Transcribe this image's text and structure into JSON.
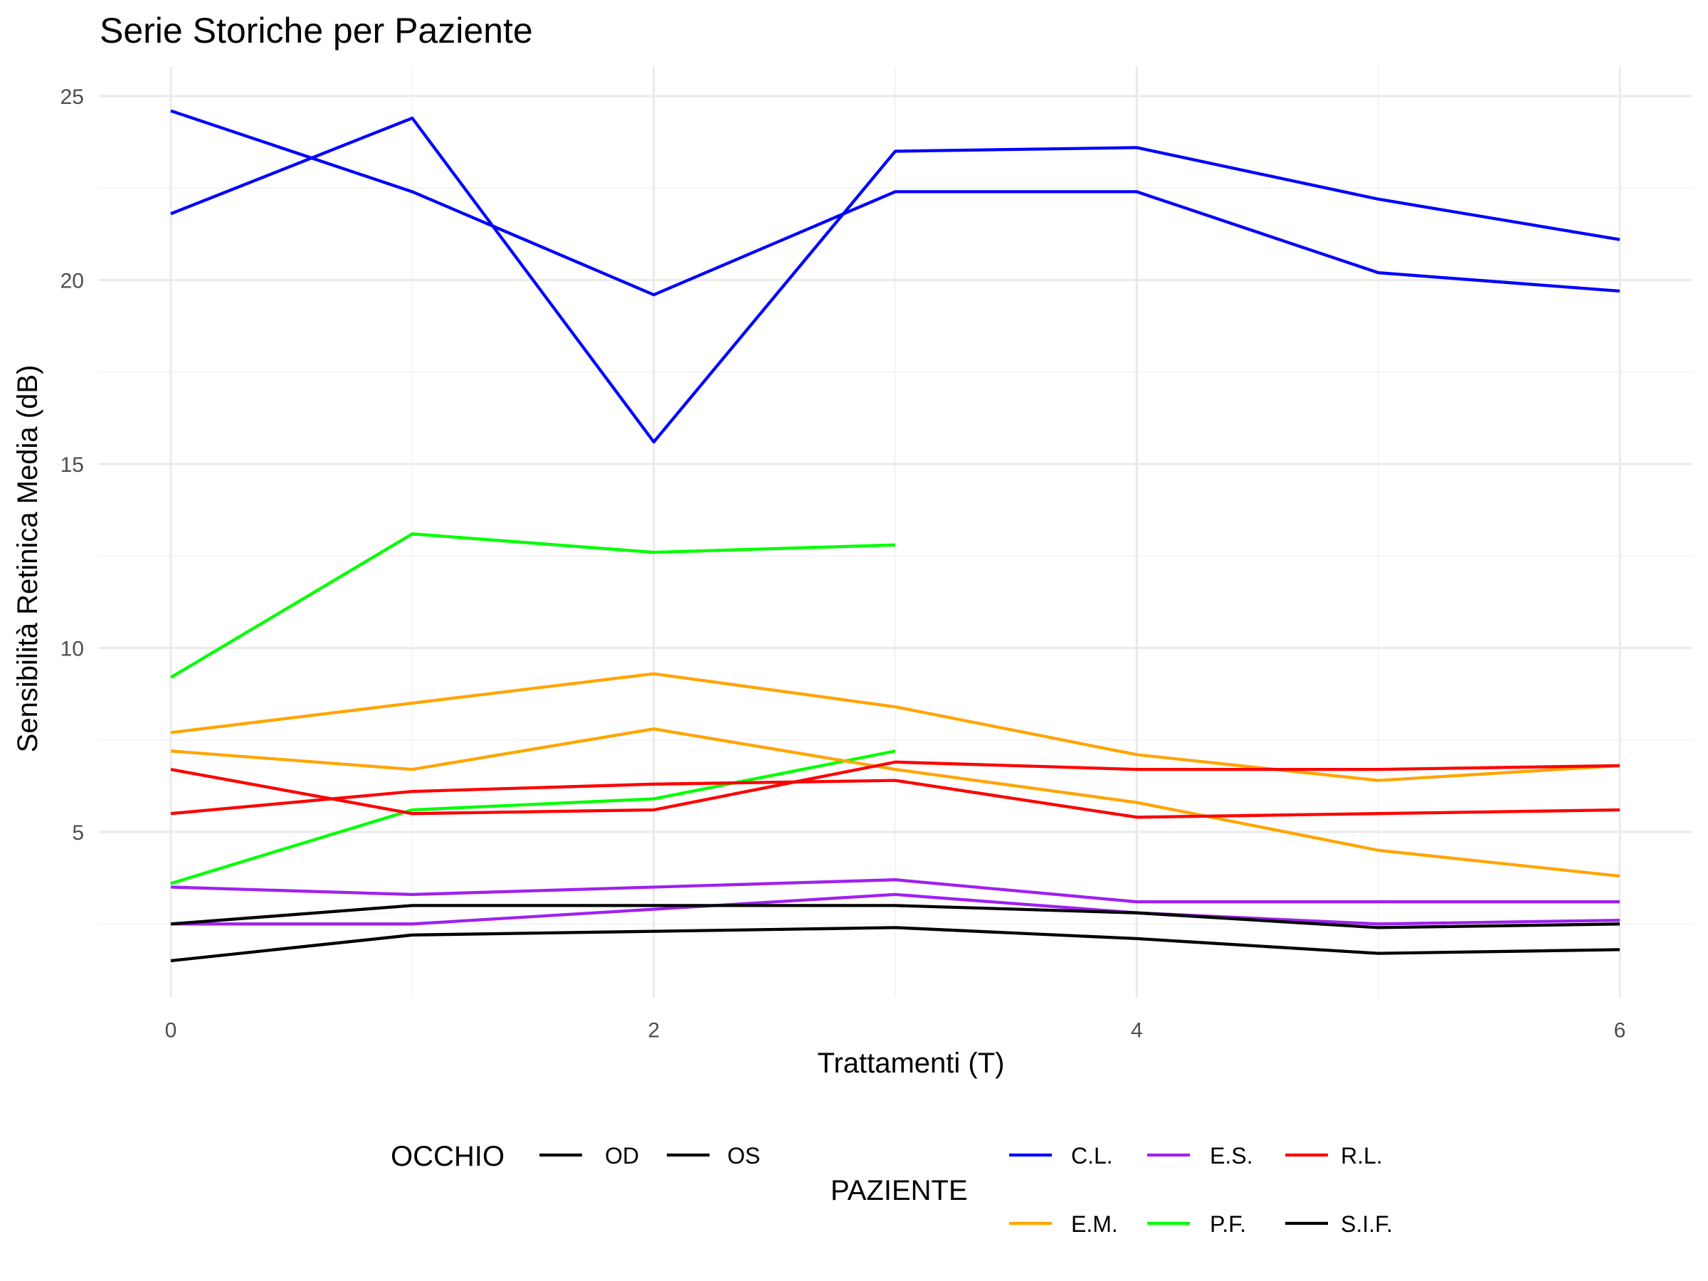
{
  "chart_data": {
    "type": "line",
    "title": "Serie Storiche per Paziente",
    "xlabel": "Trattamenti (T)",
    "ylabel": "Sensibilità Retinica Media (dB)",
    "xlim": [
      -0.3,
      6.3
    ],
    "ylim": [
      0.5,
      25.8
    ],
    "x_ticks": [
      0,
      2,
      4,
      6
    ],
    "y_ticks": [
      5,
      10,
      15,
      20,
      25
    ],
    "grid": true,
    "legend_position": "bottom",
    "legends": {
      "occhio": {
        "title": "OCCHIO",
        "entries": [
          "OD",
          "OS"
        ]
      },
      "paziente": {
        "title": "PAZIENTE",
        "rows": [
          [
            "C.L.",
            "E.S.",
            "R.L."
          ],
          [
            "E.M.",
            "P.F.",
            "S.I.F."
          ]
        ]
      }
    },
    "series": [
      {
        "paziente": "C.L.",
        "color": "#0000ff",
        "x": [
          0,
          1,
          2,
          3,
          4,
          5,
          6
        ],
        "y": [
          24.6,
          22.4,
          19.6,
          22.4,
          22.4,
          20.2,
          19.7
        ]
      },
      {
        "paziente": "C.L.",
        "color": "#0000ff",
        "x": [
          0,
          1,
          2,
          3,
          4,
          5,
          6
        ],
        "y": [
          21.8,
          24.4,
          15.6,
          23.5,
          23.6,
          22.2,
          21.1
        ]
      },
      {
        "paziente": "P.F.",
        "color": "#00ff00",
        "x": [
          0,
          1,
          2,
          3
        ],
        "y": [
          9.2,
          13.1,
          12.6,
          12.8
        ]
      },
      {
        "paziente": "P.F.",
        "color": "#00ff00",
        "x": [
          0,
          1,
          2,
          3
        ],
        "y": [
          3.6,
          5.6,
          5.9,
          7.2
        ]
      },
      {
        "paziente": "E.M.",
        "color": "#ffa500",
        "x": [
          0,
          1,
          2,
          3,
          4,
          5,
          6
        ],
        "y": [
          7.7,
          8.5,
          9.3,
          8.4,
          7.1,
          6.4,
          6.8
        ]
      },
      {
        "paziente": "E.M.",
        "color": "#ffa500",
        "x": [
          0,
          1,
          2,
          3,
          4,
          5,
          6
        ],
        "y": [
          7.2,
          6.7,
          7.8,
          6.7,
          5.8,
          4.5,
          3.8
        ]
      },
      {
        "paziente": "R.L.",
        "color": "#ff0000",
        "x": [
          0,
          1,
          2,
          3,
          4,
          5,
          6
        ],
        "y": [
          6.7,
          5.5,
          5.6,
          6.9,
          6.7,
          6.7,
          6.8
        ]
      },
      {
        "paziente": "R.L.",
        "color": "#ff0000",
        "x": [
          0,
          1,
          2,
          3,
          4,
          5,
          6
        ],
        "y": [
          5.5,
          6.1,
          6.3,
          6.4,
          5.4,
          5.5,
          5.6
        ]
      },
      {
        "paziente": "E.S.",
        "color": "#a020f0",
        "x": [
          0,
          1,
          2,
          3,
          4,
          5,
          6
        ],
        "y": [
          3.5,
          3.3,
          3.5,
          3.7,
          3.1,
          3.1,
          3.1
        ]
      },
      {
        "paziente": "E.S.",
        "color": "#a020f0",
        "x": [
          0,
          1,
          2,
          3,
          4,
          5,
          6
        ],
        "y": [
          2.5,
          2.5,
          2.9,
          3.3,
          2.8,
          2.5,
          2.6
        ]
      },
      {
        "paziente": "S.I.F.",
        "color": "#000000",
        "x": [
          0,
          1,
          2,
          3,
          4,
          5,
          6
        ],
        "y": [
          2.5,
          3.0,
          3.0,
          3.0,
          2.8,
          2.4,
          2.5
        ]
      },
      {
        "paziente": "S.I.F.",
        "color": "#000000",
        "x": [
          0,
          1,
          2,
          3,
          4,
          5,
          6
        ],
        "y": [
          1.5,
          2.2,
          2.3,
          2.4,
          2.1,
          1.7,
          1.8
        ]
      }
    ]
  },
  "colors": {
    "C.L.": "#0000ff",
    "E.M.": "#ffa500",
    "E.S.": "#a020f0",
    "P.F.": "#00ff00",
    "R.L.": "#ff0000",
    "S.I.F.": "#000000",
    "OD": "#000000",
    "OS": "#000000"
  }
}
